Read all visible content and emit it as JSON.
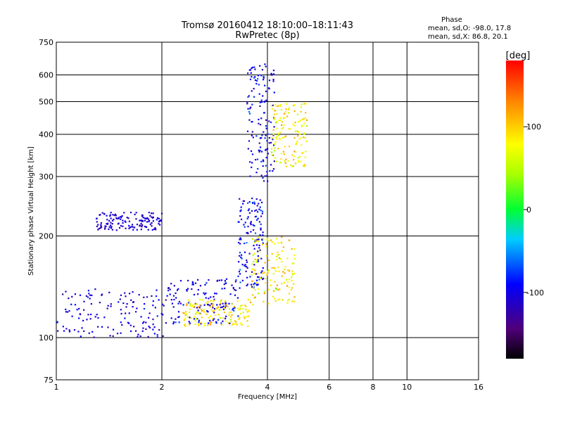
{
  "chart_data": {
    "type": "scatter",
    "title": "Tromsø 20160412 18:10:00–18:11:43",
    "subtitle": "RwPretec (8p)",
    "xlabel": "Frequency [MHz]",
    "ylabel": "Stationary phase Virtual Height [km]",
    "xscale": "log",
    "yscale": "log",
    "xlim": [
      1,
      16
    ],
    "ylim": [
      75,
      750
    ],
    "x_ticks": [
      "1",
      "2",
      "4",
      "6",
      "8",
      "10",
      "16"
    ],
    "y_ticks": [
      "75",
      "100",
      "200",
      "300",
      "400",
      "500",
      "600",
      "750"
    ],
    "grid": true,
    "stats_box": {
      "title": "Phase",
      "line1": "mean, sd,O: -98.0, 17.8",
      "line2": "mean, sd,X: 86.8, 20.1"
    },
    "colorbar": {
      "label": "[deg]",
      "range": [
        -180,
        180
      ],
      "ticks": [
        "100",
        "0",
        "-100"
      ],
      "tick_values": [
        100,
        0,
        -100
      ]
    },
    "colors": {
      "o_mode": "#2222dd",
      "x_mode": "#dddd22",
      "grid": "#000000"
    },
    "traces": [
      {
        "mode": "O",
        "x_range": [
          1.0,
          2.05
        ],
        "height_range": [
          100,
          140
        ],
        "phase_mean": -105,
        "phase_sd": 12
      },
      {
        "mode": "O",
        "x_range": [
          2.05,
          3.3
        ],
        "height_range": [
          110,
          150
        ],
        "phase_mean": -100,
        "phase_sd": 15
      },
      {
        "mode": "O",
        "x_range": [
          3.3,
          3.9
        ],
        "height_range": [
          140,
          260
        ],
        "phase_mean": -98,
        "phase_sd": 18
      },
      {
        "mode": "O",
        "x_range": [
          3.5,
          4.2
        ],
        "height_range": [
          290,
          650
        ],
        "phase_mean": -100,
        "phase_sd": 18
      },
      {
        "mode": "O",
        "x_range": [
          1.3,
          2.0
        ],
        "height_range": [
          208,
          235
        ],
        "phase_mean": -110,
        "phase_sd": 8
      },
      {
        "mode": "X",
        "x_range": [
          2.3,
          3.6
        ],
        "height_range": [
          108,
          130
        ],
        "phase_mean": 88,
        "phase_sd": 20
      },
      {
        "mode": "X",
        "x_range": [
          3.6,
          4.8
        ],
        "height_range": [
          125,
          200
        ],
        "phase_mean": 86,
        "phase_sd": 22
      },
      {
        "mode": "X",
        "x_range": [
          4.1,
          5.2
        ],
        "height_range": [
          320,
          500
        ],
        "phase_mean": 86,
        "phase_sd": 20
      }
    ]
  }
}
